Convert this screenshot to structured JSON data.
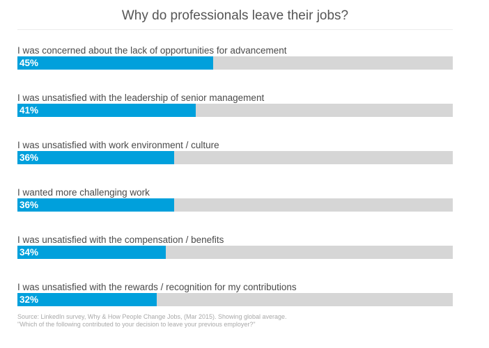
{
  "chart_data": {
    "type": "bar",
    "orientation": "horizontal",
    "title": "Why do professionals leave their jobs?",
    "categories": [
      "I was concerned about the lack of opportunities for advancement",
      "I was unsatisfied with the leadership of senior management",
      "I was unsatisfied with work environment / culture",
      "I wanted more challenging work",
      "I was unsatisfied with the compensation / benefits",
      "I was unsatisfied with the rewards / recognition for my contributions"
    ],
    "values": [
      45,
      41,
      36,
      36,
      34,
      32
    ],
    "value_labels": [
      "45%",
      "41%",
      "36%",
      "36%",
      "34%",
      "32%"
    ],
    "xlim": [
      0,
      100
    ],
    "bar_color": "#00a0dc",
    "track_color": "#d6d6d6",
    "grid": false,
    "legend": "none"
  },
  "source": {
    "line1": "Source: LinkedIn survey, Why & How People Change Jobs, (Mar 2015). Showing global average.",
    "line2": "\"Which of the following contributed to your decision to leave your previous employer?\""
  }
}
